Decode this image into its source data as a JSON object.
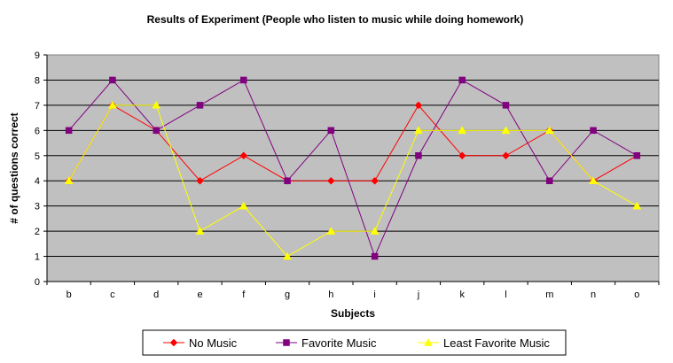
{
  "chart_data": {
    "type": "line",
    "title": "Results of Experiment (People who listen to music while doing homework)",
    "xlabel": "Subjects",
    "ylabel": "# of questions correct",
    "categories": [
      "b",
      "c",
      "d",
      "e",
      "f",
      "g",
      "h",
      "i",
      "j",
      "k",
      "l",
      "m",
      "n",
      "o"
    ],
    "ylim": [
      0,
      9
    ],
    "yticks": [
      0,
      1,
      2,
      3,
      4,
      5,
      6,
      7,
      8,
      9
    ],
    "grid": true,
    "legend_position": "bottom",
    "plot_background": "#c0c0c0",
    "series": [
      {
        "name": "No Music",
        "color": "#ff0000",
        "marker": "diamond",
        "values": [
          4,
          7,
          6,
          4,
          5,
          4,
          4,
          4,
          7,
          5,
          5,
          6,
          4,
          5
        ]
      },
      {
        "name": "Favorite Music",
        "color": "#800080",
        "marker": "square",
        "values": [
          6,
          8,
          6,
          7,
          8,
          4,
          6,
          1,
          5,
          8,
          7,
          4,
          6,
          5
        ]
      },
      {
        "name": "Least Favorite Music",
        "color": "#ffff00",
        "marker": "triangle",
        "values": [
          4,
          7,
          7,
          2,
          3,
          1,
          2,
          2,
          6,
          6,
          6,
          6,
          4,
          3
        ]
      }
    ]
  }
}
